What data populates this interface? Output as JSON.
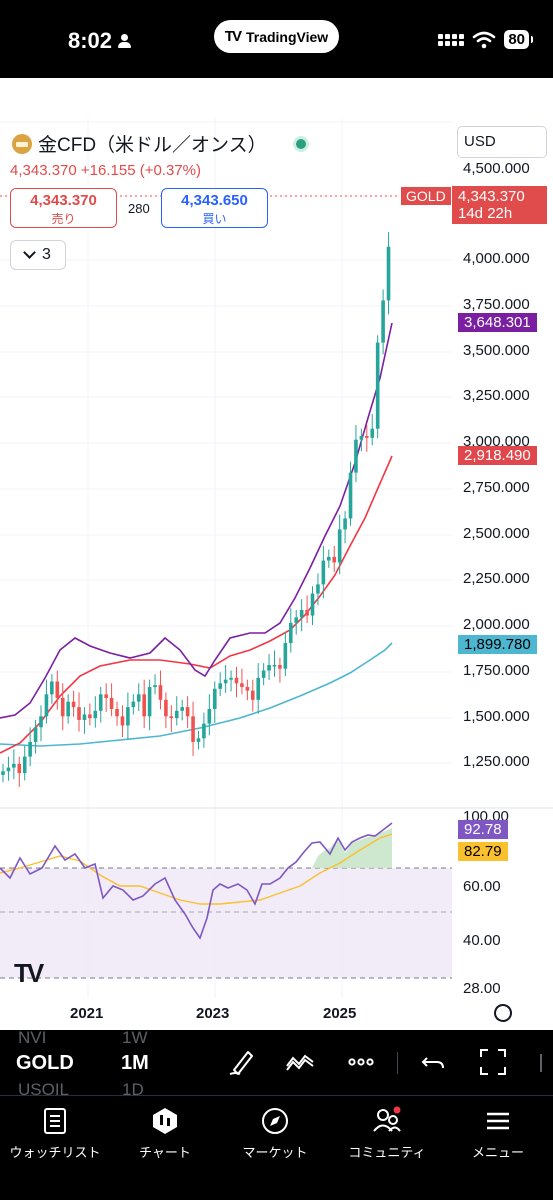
{
  "status_bar": {
    "time": "8:02",
    "app_pill": "TradingView",
    "battery": "80",
    "icons": [
      "person-icon",
      "cellular-signal-icon",
      "wifi-icon",
      "battery-icon"
    ]
  },
  "header": {
    "symbol_title": "金CFD（米ドル／オンス）",
    "price_line": "4,343.370  +16.155 (+0.37%)",
    "currency": "USD",
    "sell_price": "4,343.370",
    "sell_label": "売り",
    "spread": "280",
    "buy_price": "4,343.650",
    "buy_label": "買い",
    "indicators_count": "3"
  },
  "price_axis": {
    "ticks": [
      "4,500.000",
      "4,000.000",
      "3,750.000",
      "3,500.000",
      "3,250.000",
      "3,000.000",
      "2,750.000",
      "2,500.000",
      "2,250.000",
      "2,000.000",
      "1,750.000",
      "1,500.000",
      "1,250.000"
    ],
    "badges": {
      "symbol": "GOLD",
      "last_price": "4,343.370",
      "countdown": "14d 22h",
      "ma_fast": "3,648.301",
      "ma_mid": "2,918.490",
      "ma_slow": "1,899.780"
    }
  },
  "rsi_axis": {
    "ticks": [
      "100.00",
      "60.00",
      "40.00",
      "28.00"
    ],
    "badges": {
      "rsi": "92.78",
      "rsi_ma": "82.79"
    }
  },
  "time_axis": [
    "2021",
    "2023",
    "2025"
  ],
  "colors": {
    "up": "#26a69a",
    "down": "#ef5350",
    "badge_red": "#e04b4b",
    "ma_fast": "#7b1fa2",
    "ma_mid": "#f23645",
    "ma_slow": "#4db6d0",
    "rsi": "#7e57c2",
    "rsi_ma": "#fbc02d"
  },
  "toolbar": {
    "symbol": "GOLD",
    "interval": "1M",
    "ghost_rows": [
      "NVI",
      "1W",
      "USOIL",
      "1D"
    ],
    "icons": [
      "drawing-pen-icon",
      "indicators-icon",
      "more-icon",
      "undo-icon",
      "fullscreen-icon"
    ]
  },
  "bottom_nav": [
    {
      "label": "ウォッチリスト",
      "icon": "watchlist-icon"
    },
    {
      "label": "チャート",
      "icon": "chart-icon"
    },
    {
      "label": "マーケット",
      "icon": "compass-icon"
    },
    {
      "label": "コミュニティ",
      "icon": "community-icon"
    },
    {
      "label": "メニュー",
      "icon": "menu-icon"
    }
  ],
  "chart_data": {
    "type": "candlestick",
    "x_axis_labels": [
      "2021",
      "2023",
      "2025"
    ],
    "ylim": [
      1250,
      4500
    ],
    "last_close": 4343.37,
    "moving_averages": [
      {
        "value": 3648.301
      },
      {
        "value": 2918.49
      },
      {
        "value": 1899.78
      }
    ],
    "rsi": {
      "value": 92.78,
      "ma": 82.79,
      "levels": [
        70,
        50,
        30
      ],
      "ylim": [
        28,
        100
      ]
    }
  }
}
